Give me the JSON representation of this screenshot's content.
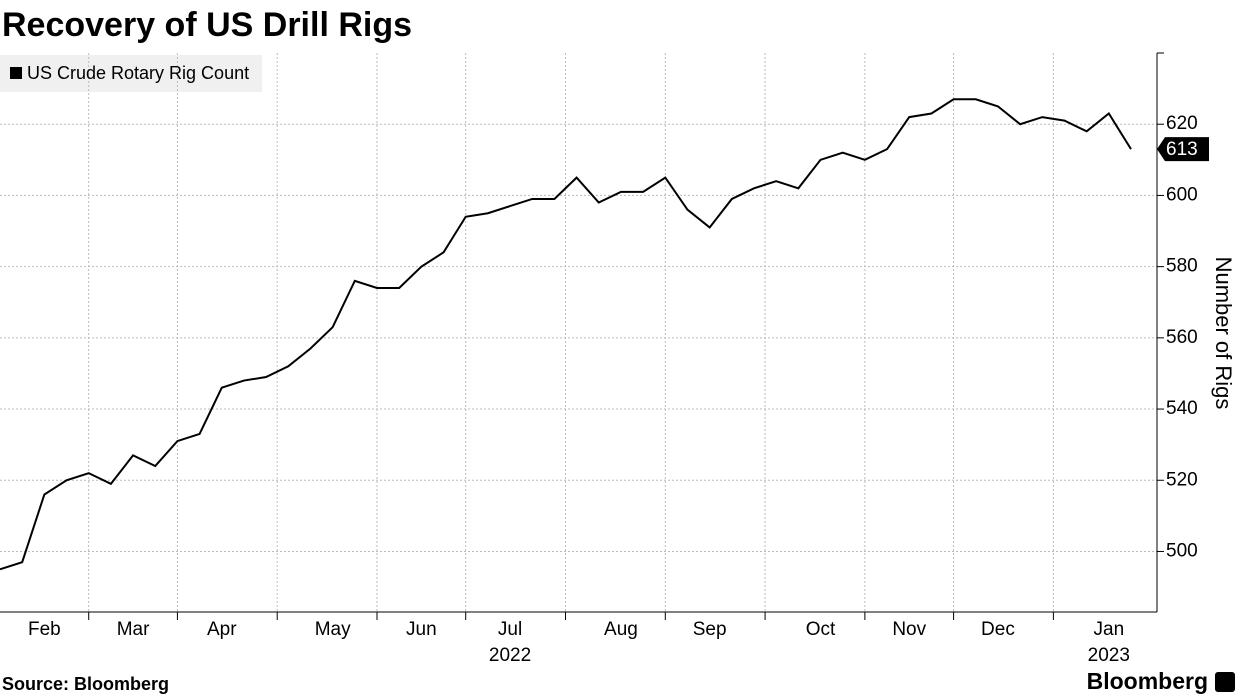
{
  "chart_data": {
    "type": "line",
    "title": "Recovery of US Drill Rigs",
    "source": "Source: Bloomberg",
    "brand": "Bloomberg",
    "y_axis_label": "Number of Rigs",
    "categories": [
      null,
      null,
      "Feb",
      null,
      null,
      null,
      "Mar",
      null,
      null,
      null,
      "Apr",
      null,
      null,
      null,
      null,
      "May",
      null,
      null,
      null,
      "Jun",
      null,
      null,
      null,
      "Jul",
      null,
      null,
      null,
      null,
      "Aug",
      null,
      null,
      null,
      "Sep",
      null,
      null,
      null,
      null,
      "Oct",
      null,
      null,
      null,
      "Nov",
      null,
      null,
      null,
      "Dec",
      null,
      null,
      null,
      null,
      "Jan",
      null
    ],
    "category_years": [
      null,
      null,
      null,
      null,
      null,
      null,
      null,
      null,
      null,
      null,
      null,
      null,
      null,
      null,
      null,
      null,
      null,
      null,
      null,
      null,
      null,
      null,
      null,
      "2022",
      null,
      null,
      null,
      null,
      null,
      null,
      null,
      null,
      null,
      null,
      null,
      null,
      null,
      null,
      null,
      null,
      null,
      null,
      null,
      null,
      null,
      null,
      null,
      null,
      null,
      null,
      "2023",
      null
    ],
    "series": [
      {
        "name": "US Crude Rotary Rig Count",
        "color": "#000000",
        "values": [
          495,
          497,
          516,
          520,
          522,
          519,
          527,
          524,
          531,
          533,
          546,
          548,
          549,
          552,
          557,
          563,
          576,
          574,
          574,
          580,
          584,
          594,
          595,
          597,
          599,
          599,
          605,
          598,
          601,
          601,
          605,
          596,
          591,
          599,
          602,
          604,
          602,
          610,
          612,
          610,
          613,
          622,
          623,
          627,
          627,
          625,
          620,
          622,
          621,
          618,
          623,
          613
        ]
      }
    ],
    "ylim": [
      483,
      640
    ],
    "yticks": [
      500,
      520,
      540,
      560,
      580,
      600,
      620
    ],
    "grid": true,
    "legend": "top-left"
  }
}
